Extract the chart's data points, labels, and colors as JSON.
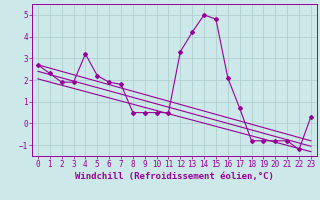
{
  "xlabel": "Windchill (Refroidissement éolien,°C)",
  "bg_color": "#cce8e8",
  "line_color": "#990099",
  "xlim": [
    -0.5,
    23.5
  ],
  "ylim": [
    -1.5,
    5.5
  ],
  "yticks": [
    -1,
    0,
    1,
    2,
    3,
    4,
    5
  ],
  "xticks": [
    0,
    1,
    2,
    3,
    4,
    5,
    6,
    7,
    8,
    9,
    10,
    11,
    12,
    13,
    14,
    15,
    16,
    17,
    18,
    19,
    20,
    21,
    22,
    23
  ],
  "series1_x": [
    0,
    1,
    2,
    3,
    4,
    5,
    6,
    7,
    8,
    9,
    10,
    11,
    12,
    13,
    14,
    15,
    16,
    17,
    18,
    19,
    20,
    21,
    22,
    23
  ],
  "series1_y": [
    2.7,
    2.3,
    1.9,
    1.9,
    3.2,
    2.2,
    1.9,
    1.8,
    0.5,
    0.5,
    0.5,
    0.5,
    3.3,
    4.2,
    5.0,
    4.8,
    2.1,
    0.7,
    -0.8,
    -0.8,
    -0.8,
    -0.8,
    -1.2,
    0.3
  ],
  "trend1_x": [
    0,
    23
  ],
  "trend1_y": [
    2.7,
    -0.8
  ],
  "trend2_x": [
    0,
    23
  ],
  "trend2_y": [
    2.4,
    -1.05
  ],
  "trend3_x": [
    0,
    23
  ],
  "trend3_y": [
    2.05,
    -1.3
  ],
  "grid_color": "#aacccc",
  "tick_fontsize": 5.5,
  "xlabel_fontsize": 6.5
}
